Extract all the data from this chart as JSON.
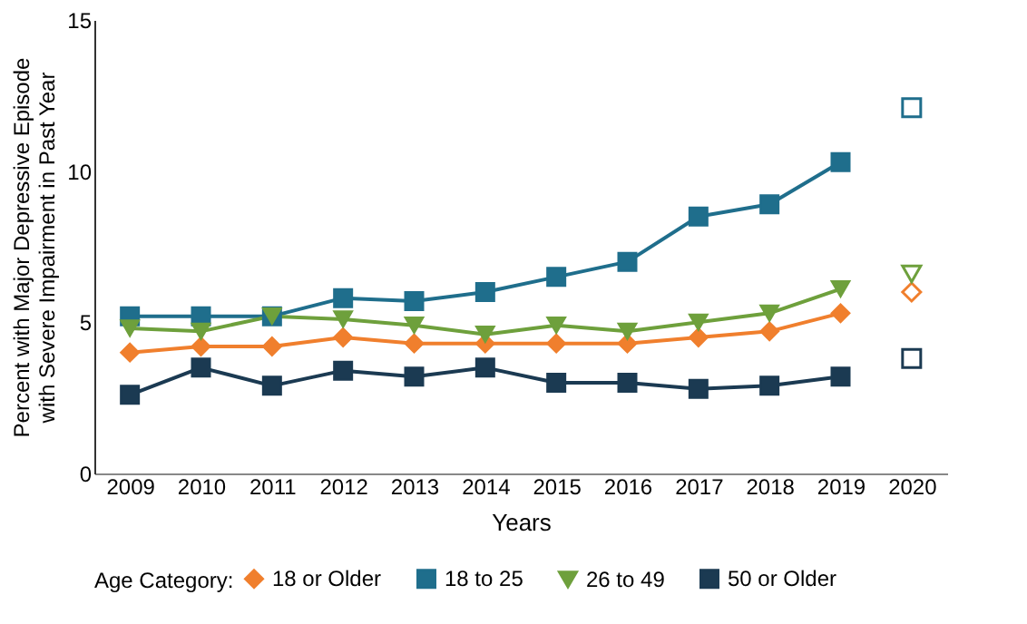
{
  "chart_data": {
    "type": "line",
    "xlabel": "Years",
    "ylabel": "Percent with Major Depressive Episode with Severe Impairment in Past Year",
    "legend_title": "Age Category:",
    "legend": "bottom",
    "grid": false,
    "categories": [
      "2009",
      "2010",
      "2011",
      "2012",
      "2013",
      "2014",
      "2015",
      "2016",
      "2017",
      "2018",
      "2019",
      "2020"
    ],
    "ylim": [
      0,
      15
    ],
    "yticks": [
      0,
      5,
      10,
      15
    ],
    "series": [
      {
        "name": "18 or Older",
        "color": "#f07f2d",
        "marker": "diamond",
        "values": [
          4.0,
          4.2,
          4.2,
          4.5,
          4.3,
          4.3,
          4.3,
          4.3,
          4.5,
          4.7,
          5.3,
          null
        ]
      },
      {
        "name": "18 to 25",
        "color": "#1f6e8c",
        "marker": "square",
        "values": [
          5.2,
          5.2,
          5.2,
          5.8,
          5.7,
          6.0,
          6.5,
          7.0,
          8.5,
          8.9,
          10.3,
          null
        ]
      },
      {
        "name": "26 to 49",
        "color": "#6ea03c",
        "marker": "triangle",
        "values": [
          4.8,
          4.7,
          5.2,
          5.1,
          4.9,
          4.6,
          4.9,
          4.7,
          5.0,
          5.3,
          6.1,
          null
        ]
      },
      {
        "name": "50 or Older",
        "color": "#1b3a52",
        "marker": "square",
        "values": [
          2.6,
          3.5,
          2.9,
          3.4,
          3.2,
          3.5,
          3.0,
          3.0,
          2.8,
          2.9,
          3.2,
          null
        ]
      },
      {
        "type": "scatter",
        "color": "#f07f2d",
        "marker": "diamond",
        "values": [
          null,
          null,
          null,
          null,
          null,
          null,
          null,
          null,
          null,
          null,
          null,
          6.0
        ]
      },
      {
        "type": "scatter",
        "color": "#1f6e8c",
        "marker": "square",
        "values": [
          null,
          null,
          null,
          null,
          null,
          null,
          null,
          null,
          null,
          null,
          null,
          12.1
        ]
      },
      {
        "type": "scatter",
        "color": "#6ea03c",
        "marker": "triangle",
        "values": [
          null,
          null,
          null,
          null,
          null,
          null,
          null,
          null,
          null,
          null,
          null,
          6.6
        ]
      },
      {
        "type": "scatter",
        "color": "#1b3a52",
        "marker": "square",
        "values": [
          null,
          null,
          null,
          null,
          null,
          null,
          null,
          null,
          null,
          null,
          null,
          3.8
        ]
      }
    ]
  }
}
